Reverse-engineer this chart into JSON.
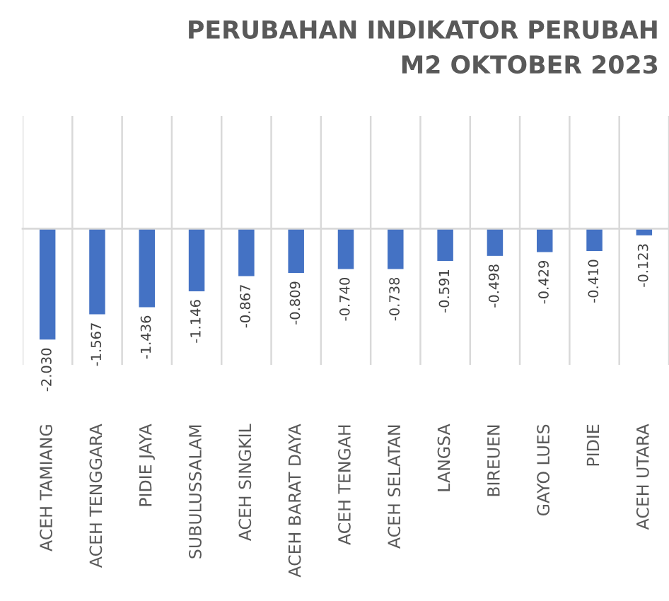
{
  "chart_data": {
    "type": "bar",
    "title": "PERUBAHAN INDIKATOR PERUBAH\nM2 OKTOBER 2023",
    "categories": [
      "ACEH TAMIANG",
      "ACEH TENGGARA",
      "PIDIE JAYA",
      "SUBULUSSALAM",
      "ACEH SINGKIL",
      "ACEH BARAT DAYA",
      "ACEH TENGAH",
      "ACEH SELATAN",
      "LANGSA",
      "BIREUEN",
      "GAYO LUES",
      "PIDIE",
      "ACEH UTARA"
    ],
    "values": [
      -2.03,
      -1.567,
      -1.436,
      -1.146,
      -0.867,
      -0.809,
      -0.74,
      -0.738,
      -0.591,
      -0.498,
      -0.429,
      -0.41,
      -0.123
    ],
    "value_labels": [
      "-2.030",
      "-1.567",
      "-1.436",
      "-1.146",
      "-0.867",
      "-0.809",
      "-0.740",
      "-0.738",
      "-0.591",
      "-0.498",
      "-0.429",
      "-0.410",
      "-0.123"
    ],
    "color": "#4472c4",
    "grid": "x",
    "legend": false
  }
}
